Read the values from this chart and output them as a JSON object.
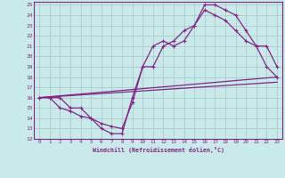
{
  "bg_color": "#c8eae8",
  "line_color": "#882288",
  "grid_color": "#aacccc",
  "xlim": [
    -0.5,
    23.5
  ],
  "ylim": [
    12,
    25.3
  ],
  "xticks": [
    0,
    1,
    2,
    3,
    4,
    5,
    6,
    7,
    8,
    9,
    10,
    11,
    12,
    13,
    14,
    15,
    16,
    17,
    18,
    19,
    20,
    21,
    22,
    23
  ],
  "yticks": [
    12,
    13,
    14,
    15,
    16,
    17,
    18,
    19,
    20,
    21,
    22,
    23,
    24,
    25
  ],
  "xlabel": "Windchill (Refroidissement éolien,°C)",
  "line1_x": [
    0,
    1,
    2,
    3,
    4,
    5,
    6,
    7,
    8,
    9,
    10,
    11,
    12,
    13,
    14,
    15,
    16,
    17,
    18,
    19,
    20,
    21,
    22,
    23
  ],
  "line1_y": [
    16,
    16,
    16,
    15,
    15,
    14,
    13,
    12.5,
    12.5,
    16,
    19,
    19,
    21,
    21.5,
    22.5,
    23,
    25,
    25,
    24.5,
    24,
    22.5,
    21,
    19,
    18
  ],
  "line2_x": [
    0,
    1,
    2,
    3,
    4,
    5,
    6,
    7,
    8,
    9,
    10,
    11,
    12,
    13,
    14,
    15,
    16,
    17,
    18,
    19,
    20,
    21,
    22,
    23
  ],
  "line2_y": [
    16,
    16,
    15,
    14.7,
    14.2,
    14,
    13.5,
    13.2,
    13.0,
    15.5,
    19,
    21,
    21.5,
    21,
    21.5,
    23,
    24.5,
    24,
    23.5,
    22.5,
    21.5,
    21,
    21,
    19
  ],
  "line3_x": [
    0,
    23
  ],
  "line3_y": [
    16,
    18.0
  ],
  "line4_x": [
    0,
    23
  ],
  "line4_y": [
    16,
    17.5
  ]
}
